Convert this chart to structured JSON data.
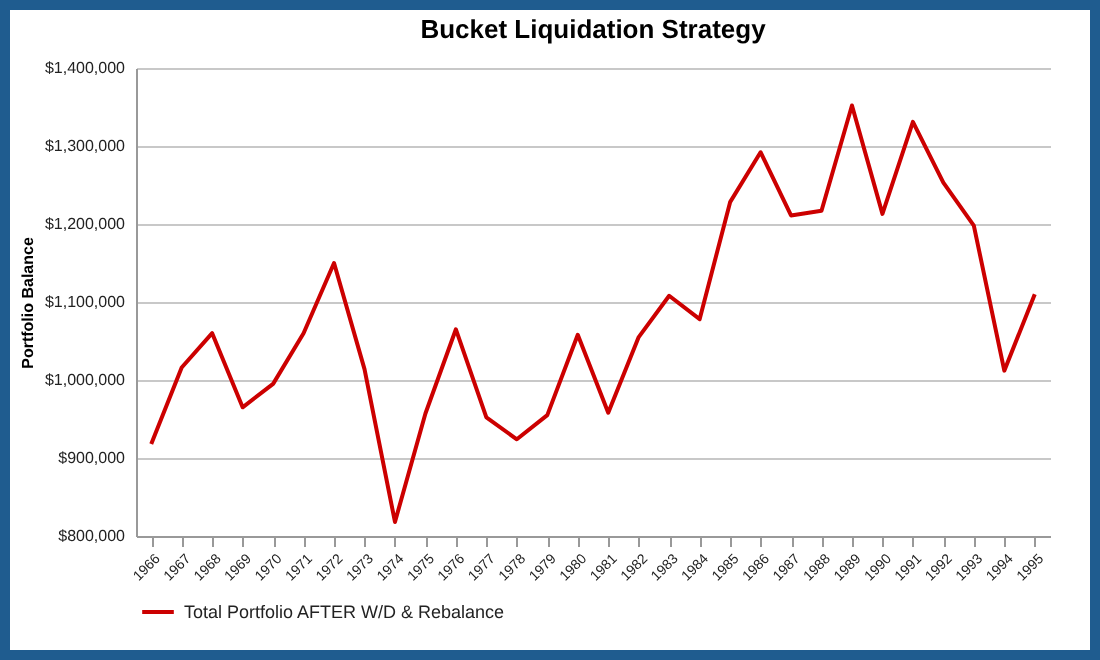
{
  "chart_data": {
    "type": "line",
    "title": "Bucket Liquidation Strategy",
    "ylabel": "Portfolio Balance",
    "categories": [
      "1966",
      "1967",
      "1968",
      "1969",
      "1970",
      "1971",
      "1972",
      "1973",
      "1974",
      "1975",
      "1976",
      "1977",
      "1978",
      "1979",
      "1980",
      "1981",
      "1982",
      "1983",
      "1984",
      "1985",
      "1986",
      "1987",
      "1988",
      "1989",
      "1990",
      "1991",
      "1992",
      "1993",
      "1994",
      "1995"
    ],
    "series": [
      {
        "name": "Total Portfolio AFTER W/D & Rebalance",
        "color": "#cc0000",
        "values": [
          918000,
          1016000,
          1060000,
          965000,
          995000,
          1060000,
          1150000,
          1014000,
          818000,
          957000,
          1065000,
          952000,
          924000,
          955000,
          1058000,
          958000,
          1055000,
          1108000,
          1078000,
          1228000,
          1292000,
          1211000,
          1217000,
          1352000,
          1213000,
          1331000,
          1253000,
          1198000,
          1012000,
          1110000
        ]
      }
    ],
    "ylim": [
      800000,
      1400000
    ],
    "yticks": [
      {
        "value": 800000,
        "label": "$800,000"
      },
      {
        "value": 900000,
        "label": "$900,000"
      },
      {
        "value": 1000000,
        "label": "$1,000,000"
      },
      {
        "value": 1100000,
        "label": "$1,100,000"
      },
      {
        "value": 1200000,
        "label": "$1,200,000"
      },
      {
        "value": 1300000,
        "label": "$1,300,000"
      },
      {
        "value": 1400000,
        "label": "$1,400,000"
      }
    ],
    "grid": "y",
    "legend": "bottom",
    "marker": "none",
    "line_style": "solid"
  }
}
